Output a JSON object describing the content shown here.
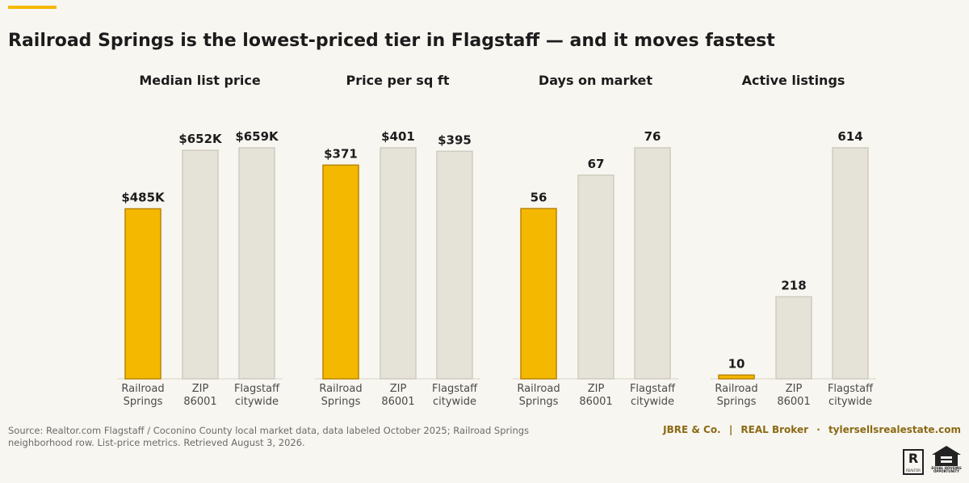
{
  "title": "Railroad Springs is the lowest-priced tier in Flagstaff — and it moves fastest",
  "colors": {
    "highlight": "#f5b800",
    "highlight_border": "#b88400",
    "muted": "#e5e2d8",
    "muted_border": "#cfcbbf",
    "accent": "#f5b800"
  },
  "chart_data": [
    {
      "type": "bar",
      "title": "Median list price",
      "categories": [
        "Railroad\nSprings",
        "ZIP\n86001",
        "Flagstaff\ncitywide"
      ],
      "values": [
        485,
        652,
        659
      ],
      "labels": [
        "$485K",
        "$652K",
        "$659K"
      ],
      "highlight_index": 0,
      "ylim": [
        0,
        659
      ]
    },
    {
      "type": "bar",
      "title": "Price per sq ft",
      "categories": [
        "Railroad\nSprings",
        "ZIP\n86001",
        "Flagstaff\ncitywide"
      ],
      "values": [
        371,
        401,
        395
      ],
      "labels": [
        "$371",
        "$401",
        "$395"
      ],
      "highlight_index": 0,
      "ylim": [
        0,
        401
      ]
    },
    {
      "type": "bar",
      "title": "Days on market",
      "categories": [
        "Railroad\nSprings",
        "ZIP\n86001",
        "Flagstaff\ncitywide"
      ],
      "values": [
        56,
        67,
        76
      ],
      "labels": [
        "56",
        "67",
        "76"
      ],
      "highlight_index": 0,
      "ylim": [
        0,
        76
      ]
    },
    {
      "type": "bar",
      "title": "Active listings",
      "categories": [
        "Railroad\nSprings",
        "ZIP\n86001",
        "Flagstaff\ncitywide"
      ],
      "values": [
        10,
        218,
        614
      ],
      "labels": [
        "10",
        "218",
        "614"
      ],
      "highlight_index": 0,
      "ylim": [
        0,
        614
      ]
    }
  ],
  "footer": {
    "source": "Source: Realtor.com Flagstaff / Coconino County local market data, data labeled October 2025; Railroad Springs neighborhood row. List-price metrics. Retrieved August 3, 2026.",
    "brand_1": "JBRE & Co.",
    "brand_sep_1": "|",
    "brand_2": "REAL Broker",
    "brand_sep_2": "·",
    "brand_3": "tylersellsrealestate.com",
    "realtor_logo_text": "REALTOR",
    "realtor_logo_letter": "R",
    "eho_text": "EQUAL HOUSING OPPORTUNITY"
  }
}
